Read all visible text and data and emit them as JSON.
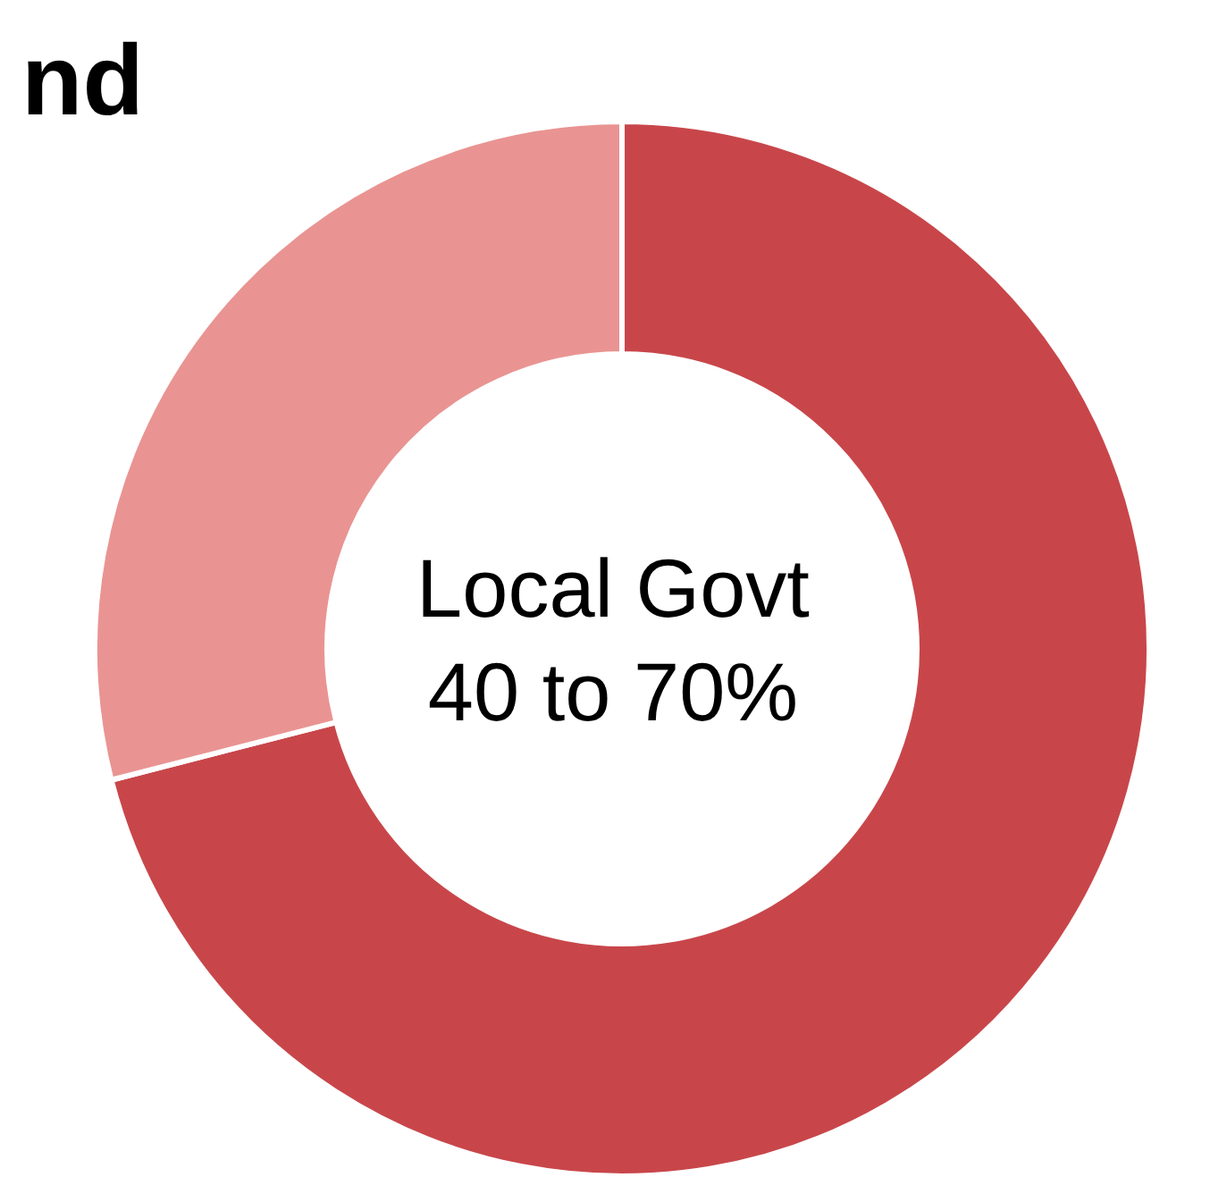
{
  "chart_data": {
    "type": "donut",
    "title": "nd",
    "categories": [
      null,
      null
    ],
    "values": [
      71,
      29
    ],
    "colors": [
      "#c8464a",
      "#e99492"
    ],
    "annotations": [
      "Local Govt\n40 to 70%"
    ]
  }
}
